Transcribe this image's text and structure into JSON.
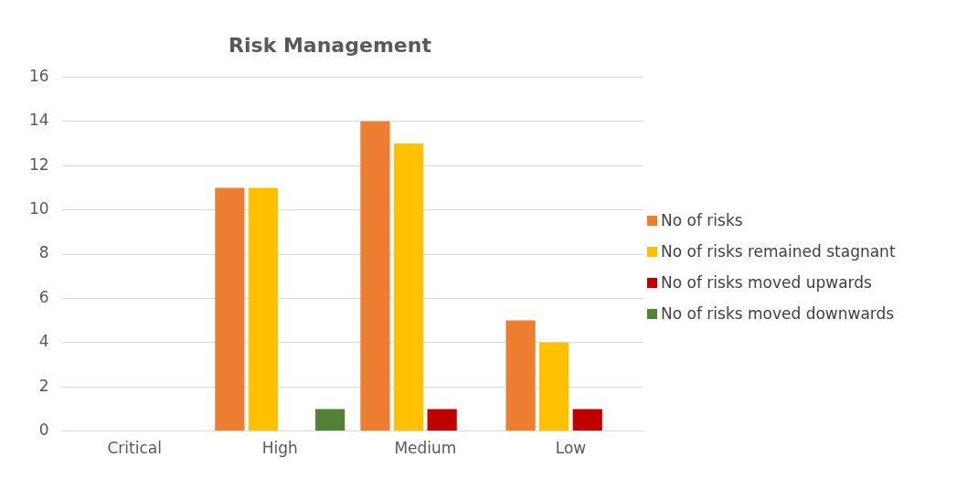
{
  "chart_data": {
    "type": "bar",
    "title": "Risk Management",
    "categories": [
      "Critical",
      "High",
      "Medium",
      "Low"
    ],
    "series": [
      {
        "name": "No of risks",
        "color": "#ed7d31",
        "values": [
          0,
          11,
          14,
          5
        ]
      },
      {
        "name": "No of risks remained stagnant",
        "color": "#ffc000",
        "values": [
          0,
          11,
          13,
          4
        ]
      },
      {
        "name": "No of risks moved upwards",
        "color": "#c00000",
        "values": [
          0,
          0,
          1,
          1
        ]
      },
      {
        "name": "No of risks moved downwards",
        "color": "#548235",
        "values": [
          0,
          1,
          0,
          0
        ]
      }
    ],
    "ylim": [
      0,
      16
    ],
    "yticks": [
      0,
      2,
      4,
      6,
      8,
      10,
      12,
      14,
      16
    ],
    "grid": "y",
    "legend": "right"
  }
}
